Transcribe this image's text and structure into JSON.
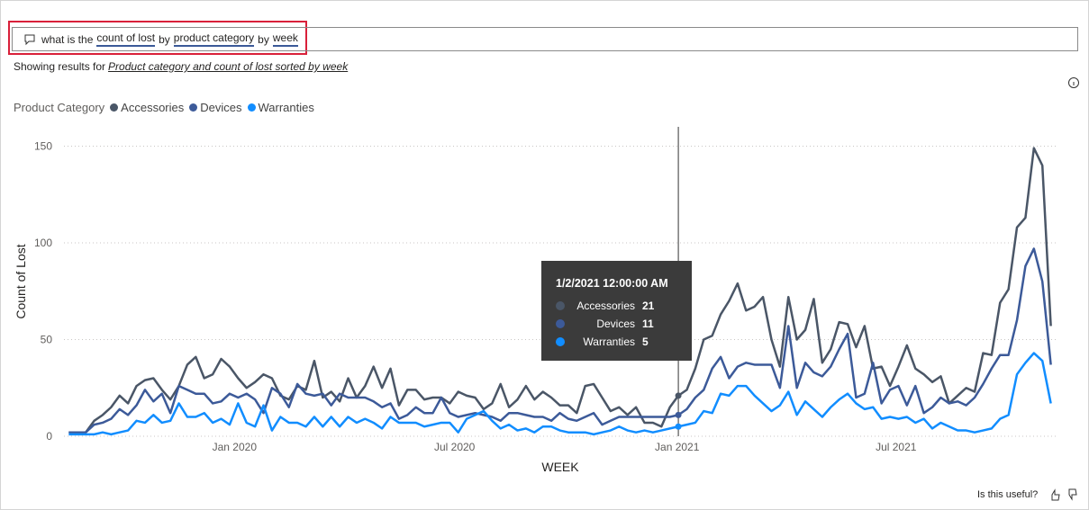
{
  "query": [
    {
      "text": "what is the",
      "underlined": false
    },
    {
      "text": "count of lost",
      "underlined": true
    },
    {
      "text": "by",
      "underlined": false
    },
    {
      "text": "product category",
      "underlined": true
    },
    {
      "text": "by",
      "underlined": false
    },
    {
      "text": "week",
      "underlined": true
    }
  ],
  "showing_prefix": "Showing results for",
  "showing_link": "Product category and count of lost sorted by week",
  "feedback": "Is this useful?",
  "chart_data": {
    "type": "line",
    "legend_title": "Product Category",
    "x_label": "WEEK",
    "y_label": "Count of Lost",
    "x": [
      "2019-08-17",
      "2019-08-24",
      "2019-08-31",
      "2019-09-07",
      "2019-09-14",
      "2019-09-21",
      "2019-09-28",
      "2019-10-05",
      "2019-10-12",
      "2019-10-19",
      "2019-10-26",
      "2019-11-02",
      "2019-11-09",
      "2019-11-16",
      "2019-11-23",
      "2019-11-30",
      "2019-12-07",
      "2019-12-14",
      "2019-12-21",
      "2019-12-28",
      "2020-01-04",
      "2020-01-11",
      "2020-01-18",
      "2020-01-25",
      "2020-02-01",
      "2020-02-08",
      "2020-02-15",
      "2020-02-22",
      "2020-02-29",
      "2020-03-07",
      "2020-03-14",
      "2020-03-21",
      "2020-03-28",
      "2020-04-04",
      "2020-04-11",
      "2020-04-18",
      "2020-04-25",
      "2020-05-02",
      "2020-05-09",
      "2020-05-16",
      "2020-05-23",
      "2020-05-30",
      "2020-06-06",
      "2020-06-13",
      "2020-06-20",
      "2020-06-27",
      "2020-07-04",
      "2020-07-11",
      "2020-07-18",
      "2020-07-25",
      "2020-08-01",
      "2020-08-08",
      "2020-08-15",
      "2020-08-22",
      "2020-08-29",
      "2020-09-05",
      "2020-09-12",
      "2020-09-19",
      "2020-09-26",
      "2020-10-03",
      "2020-10-10",
      "2020-10-17",
      "2020-10-24",
      "2020-10-31",
      "2020-11-07",
      "2020-11-14",
      "2020-11-21",
      "2020-11-28",
      "2020-12-05",
      "2020-12-12",
      "2020-12-19",
      "2020-12-26",
      "2021-01-02",
      "2021-01-09",
      "2021-01-16",
      "2021-01-23",
      "2021-01-30",
      "2021-02-06",
      "2021-02-13",
      "2021-02-20",
      "2021-02-27",
      "2021-03-06",
      "2021-03-13",
      "2021-03-20",
      "2021-03-27",
      "2021-04-03",
      "2021-04-10",
      "2021-04-17",
      "2021-04-24",
      "2021-05-01",
      "2021-05-08",
      "2021-05-15",
      "2021-05-22",
      "2021-05-29",
      "2021-06-05",
      "2021-06-12",
      "2021-06-19",
      "2021-06-26",
      "2021-07-03",
      "2021-07-10",
      "2021-07-17",
      "2021-07-24",
      "2021-07-31",
      "2021-08-07",
      "2021-08-14",
      "2021-08-21",
      "2021-08-28",
      "2021-09-04",
      "2021-09-11",
      "2021-09-18",
      "2021-09-25",
      "2021-10-02",
      "2021-10-09",
      "2021-10-16",
      "2021-10-23",
      "2021-10-30",
      "2021-11-06"
    ],
    "series": [
      {
        "name": "Accessories",
        "color": "#4a5667",
        "values": [
          2,
          2,
          2,
          8,
          11,
          15,
          21,
          17,
          26,
          29,
          30,
          24,
          19,
          26,
          37,
          41,
          30,
          32,
          40,
          36,
          30,
          25,
          28,
          32,
          30,
          21,
          19,
          26,
          24,
          39,
          20,
          23,
          18,
          30,
          20,
          26,
          36,
          25,
          35,
          16,
          24,
          24,
          19,
          20,
          20,
          17,
          23,
          21,
          20,
          14,
          17,
          27,
          15,
          19,
          26,
          19,
          23,
          20,
          16,
          16,
          12,
          26,
          27,
          20,
          13,
          15,
          11,
          15,
          7,
          7,
          5,
          15,
          21,
          24,
          35,
          50,
          52,
          63,
          70,
          79,
          65,
          67,
          72,
          50,
          36,
          72,
          50,
          55,
          71,
          38,
          45,
          59,
          58,
          46,
          57,
          35,
          36,
          26,
          36,
          47,
          35,
          32,
          28,
          31,
          17,
          21,
          25,
          23,
          43,
          42,
          69,
          76,
          108,
          113,
          149,
          140,
          57
        ]
      },
      {
        "name": "Devices",
        "color": "#3c5a99",
        "values": [
          2,
          2,
          2,
          6,
          7,
          9,
          14,
          11,
          16,
          24,
          18,
          22,
          12,
          26,
          24,
          22,
          22,
          17,
          18,
          22,
          20,
          22,
          19,
          12,
          25,
          22,
          15,
          27,
          22,
          21,
          22,
          16,
          22,
          20,
          20,
          20,
          18,
          15,
          17,
          9,
          11,
          15,
          12,
          12,
          20,
          12,
          10,
          11,
          12,
          11,
          10,
          8,
          12,
          12,
          11,
          10,
          10,
          8,
          12,
          9,
          8,
          10,
          12,
          6,
          8,
          10,
          10,
          10,
          10,
          10,
          10,
          10,
          11,
          14,
          20,
          24,
          35,
          41,
          30,
          36,
          38,
          37,
          37,
          37,
          25,
          57,
          25,
          38,
          33,
          31,
          36,
          45,
          53,
          20,
          22,
          38,
          17,
          24,
          26,
          16,
          26,
          12,
          15,
          20,
          17,
          18,
          16,
          20,
          27,
          35,
          42,
          42,
          60,
          88,
          97,
          80,
          37
        ]
      },
      {
        "name": "Warranties",
        "color": "#118dff",
        "values": [
          1,
          1,
          1,
          1,
          2,
          1,
          2,
          3,
          8,
          7,
          11,
          7,
          8,
          17,
          10,
          10,
          12,
          7,
          9,
          6,
          17,
          7,
          5,
          16,
          3,
          10,
          7,
          7,
          5,
          10,
          5,
          10,
          5,
          10,
          7,
          9,
          7,
          4,
          10,
          7,
          7,
          7,
          5,
          6,
          7,
          7,
          2,
          9,
          11,
          13,
          8,
          4,
          6,
          3,
          4,
          2,
          5,
          5,
          3,
          2,
          2,
          2,
          1,
          2,
          3,
          5,
          3,
          2,
          3,
          2,
          3,
          4,
          5,
          6,
          7,
          13,
          12,
          22,
          21,
          26,
          26,
          21,
          17,
          13,
          16,
          23,
          11,
          18,
          14,
          10,
          15,
          19,
          22,
          17,
          14,
          15,
          9,
          10,
          9,
          10,
          7,
          9,
          4,
          7,
          5,
          3,
          3,
          2,
          3,
          4,
          9,
          11,
          32,
          38,
          43,
          39,
          17
        ]
      }
    ],
    "xlim": [
      "2019-08-13",
      "2021-11-10"
    ],
    "xticks": [
      {
        "value": "2020-01-01",
        "label": "Jan 2020"
      },
      {
        "value": "2020-07-01",
        "label": "Jul 2020"
      },
      {
        "value": "2021-01-01",
        "label": "Jan 2021"
      },
      {
        "value": "2021-07-01",
        "label": "Jul 2021"
      }
    ],
    "ylim": [
      0,
      160
    ],
    "yticks": [
      0,
      50,
      100,
      150
    ],
    "grid": true,
    "tooltip": {
      "title": "1/2/2021 12:00:00 AM"
    }
  }
}
